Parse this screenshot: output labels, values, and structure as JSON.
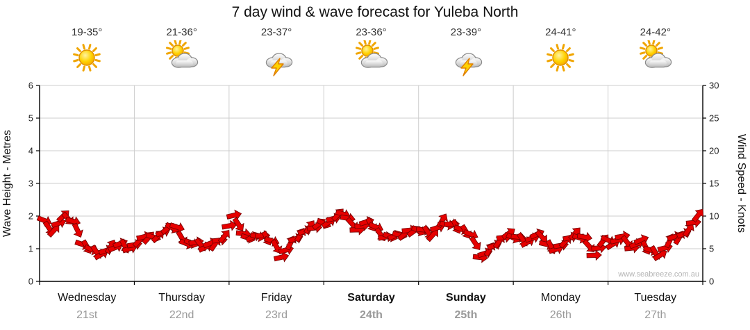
{
  "title": "7 day wind & wave forecast for Yuleba North",
  "watermark": "www.seabreeze.com.au",
  "days": [
    {
      "name": "Wednesday",
      "date": "21st",
      "temp": "19-35°",
      "icon": "sunny",
      "bold": false
    },
    {
      "name": "Thursday",
      "date": "22nd",
      "temp": "21-36°",
      "icon": "partly-cloudy",
      "bold": false
    },
    {
      "name": "Friday",
      "date": "23rd",
      "temp": "23-37°",
      "icon": "thunderstorm",
      "bold": false
    },
    {
      "name": "Saturday",
      "date": "24th",
      "temp": "23-36°",
      "icon": "partly-cloudy",
      "bold": true
    },
    {
      "name": "Sunday",
      "date": "25th",
      "temp": "23-39°",
      "icon": "thunderstorm",
      "bold": true
    },
    {
      "name": "Monday",
      "date": "26th",
      "temp": "24-41°",
      "icon": "sunny",
      "bold": false
    },
    {
      "name": "Tuesday",
      "date": "27th",
      "temp": "24-42°",
      "icon": "partly-cloudy",
      "bold": false
    }
  ],
  "chart_data": {
    "type": "line",
    "title": "7 day wind & wave forecast for Yuleba North",
    "x_categories": [
      "Wednesday 21st",
      "Thursday 22nd",
      "Friday 23rd",
      "Saturday 24th",
      "Sunday 25th",
      "Monday 26th",
      "Tuesday 27th"
    ],
    "left_axis": {
      "label": "Wave Height - Metres",
      "min": 0,
      "max": 6,
      "ticks": [
        0,
        1,
        2,
        3,
        4,
        5,
        6
      ]
    },
    "right_axis": {
      "label": "Wind Speed - Knots",
      "min": 0,
      "max": 30,
      "ticks": [
        0,
        5,
        10,
        15,
        20,
        25,
        30
      ]
    },
    "gridlines": true,
    "series": [
      {
        "name": "Wind Speed",
        "unit": "knots",
        "color": "#e60000",
        "points_per_day": 10,
        "values": [
          9,
          8,
          10,
          9,
          6,
          5,
          4,
          5,
          6,
          5,
          6,
          7,
          7,
          8,
          8,
          6,
          6,
          5,
          6,
          7,
          10,
          7,
          7,
          7,
          6,
          4,
          6,
          7,
          8,
          9,
          9,
          10,
          10,
          8,
          9,
          8,
          7,
          7,
          7,
          8,
          8,
          7,
          9,
          9,
          8,
          7,
          4,
          5,
          6,
          7,
          7,
          6,
          7,
          6,
          5,
          6,
          7,
          7,
          4,
          6,
          6,
          7,
          5,
          6,
          5,
          4,
          6,
          7,
          8,
          10
        ]
      }
    ]
  }
}
